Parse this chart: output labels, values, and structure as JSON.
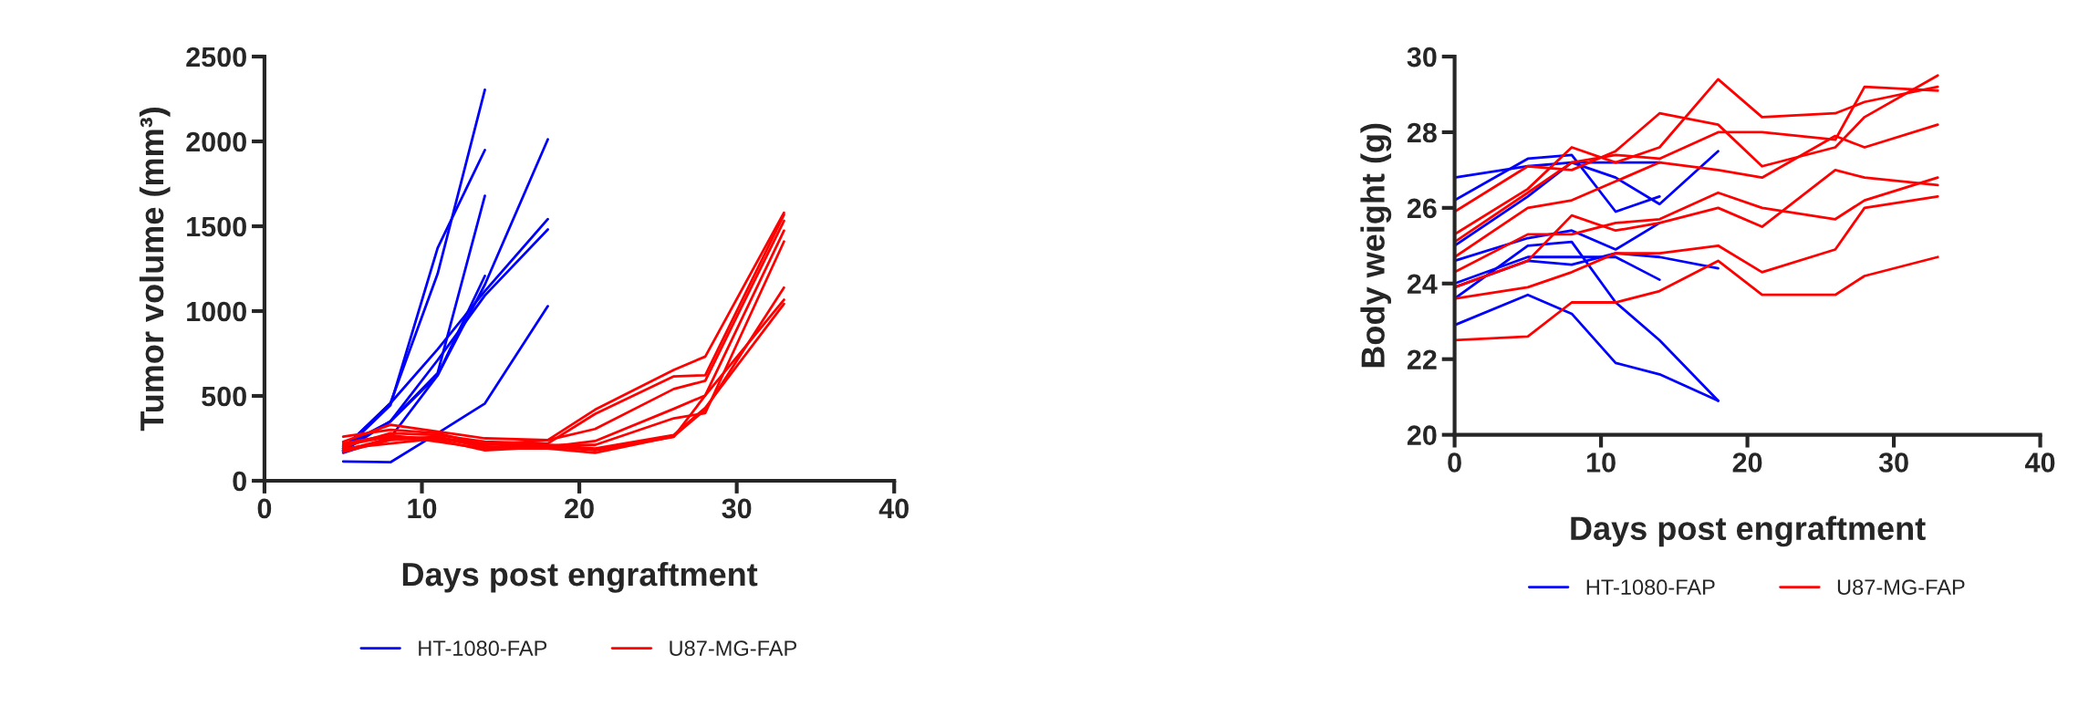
{
  "chart_data": [
    {
      "type": "line",
      "xlabel": "Days post engraftment",
      "ylabel": "Tumor volume (mm³)",
      "xlim": [
        0,
        40
      ],
      "xticks": [
        0,
        10,
        20,
        30,
        40
      ],
      "ylim": [
        0,
        2500
      ],
      "yticks": [
        0,
        500,
        1000,
        1500,
        2000,
        2500
      ],
      "legend": "bottom",
      "line_style": "solid",
      "marker": "none",
      "series": [
        {
          "name": "HT-1080-FAP",
          "color": "#0000ff",
          "x": [
            5,
            8,
            11,
            14
          ],
          "values": [
            190,
            457,
            1220,
            2304
          ]
        },
        {
          "color": "#0000ff",
          "x": [
            5,
            8,
            11,
            14
          ],
          "values": [
            178,
            445,
            1372,
            1949
          ]
        },
        {
          "color": "#0000ff",
          "x": [
            5,
            8,
            11,
            14
          ],
          "values": [
            175,
            350,
            635,
            1679
          ]
        },
        {
          "color": "#0000ff",
          "x": [
            5,
            8,
            11,
            14
          ],
          "values": [
            165,
            254,
            622,
            1207
          ]
        },
        {
          "color": "#0000ff",
          "x": [
            5,
            8,
            11,
            14,
            18
          ],
          "values": [
            203,
            350,
            622,
            1156,
            2012
          ]
        },
        {
          "color": "#0000ff",
          "x": [
            5,
            8,
            11,
            14,
            18
          ],
          "values": [
            190,
            457,
            775,
            1118,
            1542
          ]
        },
        {
          "color": "#0000ff",
          "x": [
            5,
            8,
            11,
            14,
            18
          ],
          "values": [
            178,
            350,
            711,
            1092,
            1481
          ]
        },
        {
          "color": "#0000ff",
          "x": [
            5,
            8,
            11,
            14,
            18
          ],
          "values": [
            114,
            109,
            280,
            455,
            1029
          ]
        },
        {
          "name": "U87-MG-FAP",
          "color": "#ff0000",
          "x": [
            5,
            8,
            11,
            14,
            18,
            21,
            26,
            28,
            33
          ],
          "values": [
            230,
            330,
            290,
            250,
            240,
            419,
            653,
            732,
            1580
          ]
        },
        {
          "color": "#ff0000",
          "x": [
            5,
            8,
            11,
            14,
            18,
            21,
            26,
            28,
            33
          ],
          "values": [
            200,
            280,
            270,
            230,
            220,
            394,
            615,
            622,
            1568
          ]
        },
        {
          "color": "#ff0000",
          "x": [
            5,
            8,
            11,
            14,
            18,
            21,
            26,
            28,
            33
          ],
          "values": [
            260,
            300,
            280,
            210,
            240,
            305,
            541,
            589,
            1532
          ]
        },
        {
          "color": "#ff0000",
          "x": [
            5,
            8,
            11,
            14,
            18,
            21,
            26,
            28,
            33
          ],
          "values": [
            180,
            250,
            240,
            180,
            200,
            234,
            424,
            503,
            1474
          ]
        },
        {
          "color": "#ff0000",
          "x": [
            5,
            8,
            11,
            14,
            18,
            21,
            26,
            28,
            33
          ],
          "values": [
            190,
            220,
            250,
            200,
            210,
            211,
            368,
            399,
            1410
          ]
        },
        {
          "color": "#ff0000",
          "x": [
            5,
            8,
            11,
            14,
            18,
            21,
            26,
            28,
            33
          ],
          "values": [
            220,
            270,
            230,
            190,
            190,
            165,
            262,
            419,
            1138
          ]
        },
        {
          "color": "#ff0000",
          "x": [
            5,
            8,
            11,
            14,
            18,
            21,
            26,
            28,
            33
          ],
          "values": [
            170,
            240,
            260,
            200,
            200,
            180,
            259,
            503,
            1067
          ]
        },
        {
          "color": "#ff0000",
          "x": [
            5,
            8,
            11,
            14,
            18,
            21,
            26,
            28,
            33
          ],
          "values": [
            210,
            260,
            250,
            220,
            210,
            190,
            270,
            430,
            1042
          ]
        }
      ]
    },
    {
      "type": "line",
      "xlabel": "Days post engraftment",
      "ylabel": "Body weight (g)",
      "xlim": [
        0,
        40
      ],
      "xticks": [
        0,
        10,
        20,
        30,
        40
      ],
      "ylim": [
        20,
        30
      ],
      "yticks": [
        20,
        22,
        24,
        26,
        28,
        30
      ],
      "legend": "bottom",
      "line_style": "solid",
      "marker": "none",
      "series": [
        {
          "name": "HT-1080-FAP",
          "color": "#0000ff",
          "x": [
            0,
            5,
            8,
            11,
            14
          ],
          "values": [
            26.8,
            27.1,
            27.2,
            27.2,
            27.2
          ]
        },
        {
          "color": "#0000ff",
          "x": [
            0,
            5,
            8,
            11,
            14
          ],
          "values": [
            26.2,
            27.3,
            27.4,
            25.9,
            26.3
          ]
        },
        {
          "color": "#0000ff",
          "x": [
            0,
            5,
            8,
            11,
            14,
            18
          ],
          "values": [
            25.0,
            26.3,
            27.2,
            26.8,
            26.1,
            27.5
          ]
        },
        {
          "color": "#0000ff",
          "x": [
            0,
            5,
            8,
            11,
            14
          ],
          "values": [
            24.6,
            25.2,
            25.4,
            24.9,
            25.6
          ]
        },
        {
          "color": "#0000ff",
          "x": [
            0,
            5,
            8,
            11,
            14,
            18
          ],
          "values": [
            23.6,
            25.0,
            25.1,
            23.5,
            22.5,
            20.9
          ]
        },
        {
          "color": "#0000ff",
          "x": [
            0,
            5,
            8,
            11,
            14
          ],
          "values": [
            24.0,
            24.7,
            24.7,
            24.7,
            24.1
          ]
        },
        {
          "color": "#0000ff",
          "x": [
            0,
            5,
            8,
            11,
            14,
            18
          ],
          "values": [
            23.9,
            24.6,
            24.5,
            24.8,
            24.7,
            24.4
          ]
        },
        {
          "color": "#0000ff",
          "x": [
            0,
            5,
            8,
            11,
            14,
            18
          ],
          "values": [
            22.9,
            23.7,
            23.2,
            21.9,
            21.6,
            20.9
          ]
        },
        {
          "name": "U87-MG-FAP",
          "color": "#ff0000",
          "x": [
            0,
            5,
            8,
            11,
            14,
            18,
            21,
            26,
            28,
            33
          ],
          "values": [
            25.3,
            26.5,
            27.6,
            27.2,
            27.6,
            29.4,
            28.4,
            28.5,
            28.8,
            29.2
          ]
        },
        {
          "color": "#ff0000",
          "x": [
            0,
            5,
            8,
            11,
            14,
            18,
            21,
            26,
            28,
            33
          ],
          "values": [
            25.9,
            27.1,
            27.0,
            27.5,
            28.5,
            28.2,
            27.1,
            27.6,
            28.4,
            29.5
          ]
        },
        {
          "color": "#ff0000",
          "x": [
            0,
            5,
            8,
            11,
            14,
            18,
            21,
            26,
            28,
            33
          ],
          "values": [
            25.1,
            26.4,
            27.2,
            27.4,
            27.3,
            28.0,
            28.0,
            27.8,
            29.2,
            29.1
          ]
        },
        {
          "color": "#ff0000",
          "x": [
            0,
            5,
            8,
            11,
            14,
            18,
            21,
            26,
            28,
            33
          ],
          "values": [
            24.7,
            26.0,
            26.2,
            26.7,
            27.2,
            27.0,
            26.8,
            27.9,
            27.6,
            28.2
          ]
        },
        {
          "color": "#ff0000",
          "x": [
            0,
            5,
            8,
            11,
            14,
            18,
            21,
            26,
            28,
            33
          ],
          "values": [
            24.3,
            25.3,
            25.3,
            25.6,
            25.7,
            26.4,
            26.0,
            25.7,
            26.2,
            26.8
          ]
        },
        {
          "color": "#ff0000",
          "x": [
            0,
            5,
            8,
            11,
            14,
            18,
            21,
            26,
            28,
            33
          ],
          "values": [
            23.9,
            24.6,
            25.8,
            25.4,
            25.6,
            26.0,
            25.5,
            27.0,
            26.8,
            26.6
          ]
        },
        {
          "color": "#ff0000",
          "x": [
            0,
            5,
            8,
            11,
            14,
            18,
            21,
            26,
            28,
            33
          ],
          "values": [
            23.6,
            23.9,
            24.3,
            24.8,
            24.8,
            25.0,
            24.3,
            24.9,
            26.0,
            26.3
          ]
        },
        {
          "color": "#ff0000",
          "x": [
            0,
            5,
            8,
            11,
            14,
            18,
            21,
            26,
            28,
            33
          ],
          "values": [
            22.5,
            22.6,
            23.5,
            23.5,
            23.8,
            24.6,
            23.7,
            23.7,
            24.2,
            24.7
          ]
        }
      ]
    }
  ]
}
